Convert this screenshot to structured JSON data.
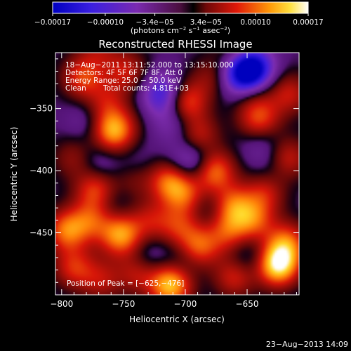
{
  "chart_data": {
    "type": "heatmap",
    "title": "Reconstructed RHESSI Image",
    "xlabel": "Heliocentric X (arcsec)",
    "ylabel": "Heliocentric Y (arcsec)",
    "xlim": [
      -805,
      -608
    ],
    "ylim": [
      -500,
      -305
    ],
    "x_ticks": [
      -800,
      -750,
      -700,
      -650
    ],
    "x_tick_labels": [
      "−800",
      "−750",
      "−700",
      "−650"
    ],
    "y_ticks": [
      -350,
      -400,
      -450
    ],
    "y_tick_labels": [
      "−350",
      "−400",
      "−450"
    ],
    "colorbar": {
      "range": [
        -0.00017,
        0.00017
      ],
      "ticks": [
        -0.00017,
        -0.0001,
        -3.4e-05,
        3.4e-05,
        0.0001,
        0.00017
      ],
      "tick_labels": [
        "−0.00017",
        "−0.00010",
        "−3.4e−05",
        "3.4e−05",
        "0.00010",
        "0.00017"
      ],
      "unit_main": "(photons cm",
      "unit_exp1": "−2",
      "unit_mid": " s",
      "unit_exp2": "−1",
      "unit_mid2": " asec",
      "unit_exp3": "−2",
      "unit_end": ")"
    },
    "annotations": {
      "time_range": "18−Aug−2011 13:11:52.000 to 13:15:10.000",
      "detectors": "Detectors: 4F 5F 6F 7F 8F, Att 0",
      "energy": "Energy Range: 25.0 − 50.0 keV",
      "clean": "Clean",
      "counts": "Total counts: 4.81E+03",
      "peak": "Position of Peak = [−625,−476]"
    },
    "sources": [
      {
        "x": -783,
        "y": -325,
        "v": 9e-05
      },
      {
        "x": -764,
        "y": -345,
        "v": 6e-05
      },
      {
        "x": -748,
        "y": -320,
        "v": 7e-05
      },
      {
        "x": -758,
        "y": -368,
        "v": 0.00014
      },
      {
        "x": -732,
        "y": -358,
        "v": 6e-05
      },
      {
        "x": -700,
        "y": -345,
        "v": 0.00011
      },
      {
        "x": -690,
        "y": -372,
        "v": 8e-05
      },
      {
        "x": -678,
        "y": -325,
        "v": 5e-05
      },
      {
        "x": -646,
        "y": -338,
        "v": 5e-05
      },
      {
        "x": -640,
        "y": -360,
        "v": 0.0001
      },
      {
        "x": -618,
        "y": -390,
        "v": 8e-05
      },
      {
        "x": -616,
        "y": -338,
        "v": 7e-05
      },
      {
        "x": -790,
        "y": -390,
        "v": 5e-05
      },
      {
        "x": -772,
        "y": -415,
        "v": 0.0001
      },
      {
        "x": -741,
        "y": -405,
        "v": 6e-05
      },
      {
        "x": -712,
        "y": -408,
        "v": 0.00011
      },
      {
        "x": -700,
        "y": -420,
        "v": 8e-05
      },
      {
        "x": -677,
        "y": -400,
        "v": 0.00012
      },
      {
        "x": -662,
        "y": -428,
        "v": 0.0001
      },
      {
        "x": -636,
        "y": -418,
        "v": 7e-05
      },
      {
        "x": -796,
        "y": -448,
        "v": 0.00011
      },
      {
        "x": -776,
        "y": -440,
        "v": 8e-05
      },
      {
        "x": -752,
        "y": -452,
        "v": 0.00013
      },
      {
        "x": -728,
        "y": -440,
        "v": 6e-05
      },
      {
        "x": -705,
        "y": -445,
        "v": 7e-05
      },
      {
        "x": -690,
        "y": -462,
        "v": 0.00011
      },
      {
        "x": -666,
        "y": -450,
        "v": 8e-05
      },
      {
        "x": -645,
        "y": -440,
        "v": 9e-05
      },
      {
        "x": -790,
        "y": -478,
        "v": 8e-05
      },
      {
        "x": -768,
        "y": -488,
        "v": 6e-05
      },
      {
        "x": -738,
        "y": -482,
        "v": 7e-05
      },
      {
        "x": -712,
        "y": -492,
        "v": 0.00015
      },
      {
        "x": -660,
        "y": -485,
        "v": 8e-05
      },
      {
        "x": -625,
        "y": -476,
        "v": 0.00017
      },
      {
        "x": -618,
        "y": -458,
        "v": 0.0001
      },
      {
        "x": -770,
        "y": -302,
        "v": 5e-05
      },
      {
        "x": -660,
        "y": -300,
        "v": 4e-05
      },
      {
        "x": -646,
        "y": -318,
        "v": -0.00017
      },
      {
        "x": -656,
        "y": -325,
        "v": -0.0001
      },
      {
        "x": -718,
        "y": -338,
        "v": -0.00011
      },
      {
        "x": -730,
        "y": -358,
        "v": -6e-05
      },
      {
        "x": -707,
        "y": -362,
        "v": -5e-05
      },
      {
        "x": -740,
        "y": -398,
        "v": -4e-05
      },
      {
        "x": -690,
        "y": -390,
        "v": -5e-05
      },
      {
        "x": -700,
        "y": -395,
        "v": -5e-05
      },
      {
        "x": -638,
        "y": -375,
        "v": -4e-05
      },
      {
        "x": -630,
        "y": -395,
        "v": -3e-05
      },
      {
        "x": -770,
        "y": -395,
        "v": -4e-05
      },
      {
        "x": -780,
        "y": -360,
        "v": -3e-05
      },
      {
        "x": -700,
        "y": -470,
        "v": -4e-05
      },
      {
        "x": -730,
        "y": -470,
        "v": -4e-05
      },
      {
        "x": -650,
        "y": -470,
        "v": -4e-05
      },
      {
        "x": -760,
        "y": -425,
        "v": -3e-05
      },
      {
        "x": -680,
        "y": -430,
        "v": -3e-05
      }
    ],
    "grid": false,
    "colormap": "blue-purple-red-yellow-white"
  },
  "footer": {
    "date": "23−Aug−2013 14:09"
  }
}
